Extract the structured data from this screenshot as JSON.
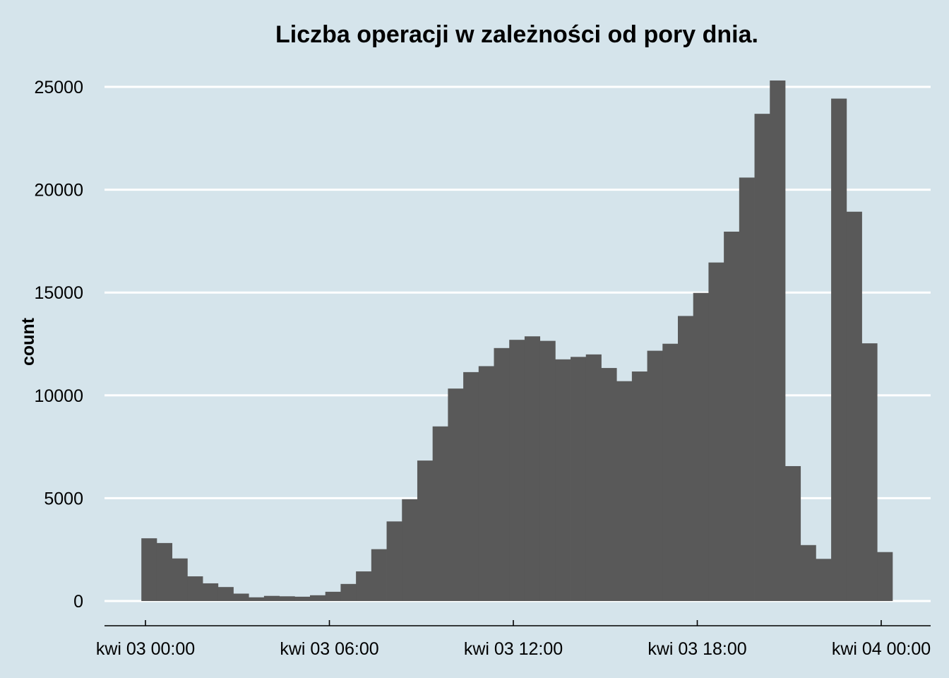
{
  "chart_data": {
    "type": "bar",
    "title": "Liczba operacji w zależności od pory dnia.",
    "xlabel": "",
    "ylabel": "count",
    "ylim": [
      0,
      25000
    ],
    "yticks": [
      "0",
      "5000",
      "10000",
      "15000",
      "20000",
      "25000"
    ],
    "xticks": [
      "kwi 03 00:00",
      "kwi 03 06:00",
      "kwi 03 12:00",
      "kwi 03 18:00",
      "kwi 04 00:00"
    ],
    "bin_width_minutes": 30,
    "x_start": "kwi 02 23:52",
    "values": [
      3050,
      2820,
      2070,
      1200,
      860,
      680,
      360,
      180,
      250,
      230,
      210,
      280,
      450,
      830,
      1440,
      2520,
      3870,
      4950,
      6830,
      8490,
      10330,
      11130,
      11420,
      12300,
      12700,
      12870,
      12650,
      11750,
      11870,
      11990,
      11330,
      10690,
      11160,
      12170,
      12510,
      13860,
      14980,
      16460,
      17960,
      20590,
      23690,
      25310,
      6560,
      2720,
      2050,
      24430,
      18930,
      12530,
      2380
    ],
    "grid": true,
    "background": "#d5e4eb",
    "bar_color": "#595959"
  }
}
